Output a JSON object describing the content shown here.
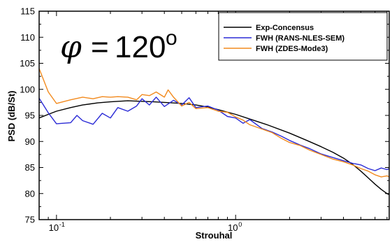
{
  "chart_data": {
    "type": "line",
    "xlabel": "Strouhal",
    "ylabel": "PSD (dB/St)",
    "xscale": "log",
    "xlim": [
      0.08,
      7.2
    ],
    "ylim": [
      75,
      115
    ],
    "grid": false,
    "legend_position": "top-right",
    "y_ticks": [
      75,
      80,
      85,
      90,
      95,
      100,
      105,
      110,
      115
    ],
    "y_tick_labels": [
      "75",
      "80",
      "85",
      "90",
      "95",
      "100",
      "105",
      "110",
      "115"
    ],
    "x_major_ticks": [
      0.1,
      1.0
    ],
    "x_tick_labels": [
      {
        "base": "10",
        "exp": "-1"
      },
      {
        "base": "10",
        "exp": "0"
      }
    ],
    "annotation": {
      "symbol": "φ",
      "equals": "=",
      "value": "120",
      "superscript": "o"
    },
    "series": [
      {
        "name": "Exp-Concensus",
        "color": "#000000",
        "x": [
          0.08,
          0.09,
          0.1,
          0.12,
          0.14,
          0.17,
          0.2,
          0.25,
          0.3,
          0.35,
          0.4,
          0.5,
          0.6,
          0.7,
          0.8,
          1.0,
          1.2,
          1.5,
          2.0,
          2.5,
          3.0,
          3.5,
          4.0,
          4.5,
          5.0,
          5.5,
          6.0,
          6.5,
          7.0,
          7.2
        ],
        "y": [
          94.5,
          95.2,
          95.8,
          96.5,
          97.0,
          97.4,
          97.6,
          97.8,
          97.7,
          97.6,
          97.5,
          97.3,
          97.0,
          96.6,
          96.1,
          95.2,
          94.3,
          93.2,
          91.6,
          90.2,
          89.0,
          87.9,
          86.8,
          85.6,
          84.3,
          83.0,
          81.8,
          80.8,
          80.0,
          79.8
        ]
      },
      {
        "name": "FWH (RANS-NLES-SEM)",
        "color": "#2b2bd6",
        "x": [
          0.08,
          0.09,
          0.1,
          0.12,
          0.13,
          0.14,
          0.16,
          0.18,
          0.2,
          0.22,
          0.25,
          0.28,
          0.3,
          0.33,
          0.36,
          0.4,
          0.45,
          0.5,
          0.55,
          0.6,
          0.7,
          0.8,
          0.9,
          1.0,
          1.1,
          1.2,
          1.4,
          1.6,
          1.8,
          2.0,
          2.3,
          2.6,
          3.0,
          3.5,
          4.0,
          4.5,
          5.0,
          5.5,
          6.0,
          6.5,
          7.0,
          7.2
        ],
        "y": [
          98.3,
          95.5,
          93.4,
          93.6,
          95.0,
          94.0,
          93.3,
          95.4,
          94.5,
          96.5,
          95.8,
          96.8,
          98.2,
          97.0,
          98.5,
          96.7,
          97.9,
          97.0,
          98.4,
          96.5,
          96.8,
          96.0,
          94.8,
          94.5,
          93.5,
          94.2,
          92.5,
          91.8,
          91.0,
          90.2,
          89.3,
          88.6,
          87.6,
          86.9,
          86.3,
          85.8,
          85.5,
          84.8,
          84.4,
          84.9,
          84.6,
          84.8
        ]
      },
      {
        "name": "FWH (ZDES-Mode3)",
        "color": "#f28a1e",
        "x": [
          0.08,
          0.09,
          0.1,
          0.12,
          0.14,
          0.16,
          0.18,
          0.2,
          0.22,
          0.25,
          0.28,
          0.3,
          0.33,
          0.36,
          0.4,
          0.42,
          0.45,
          0.5,
          0.55,
          0.6,
          0.7,
          0.8,
          0.9,
          1.0,
          1.1,
          1.2,
          1.4,
          1.6,
          1.8,
          2.0,
          2.3,
          2.6,
          3.0,
          3.5,
          4.0,
          4.5,
          5.0,
          5.5,
          6.0,
          6.5,
          7.0,
          7.2
        ],
        "y": [
          104.0,
          99.5,
          97.3,
          98.0,
          98.5,
          98.2,
          98.6,
          98.5,
          98.6,
          98.5,
          98.0,
          99.0,
          98.8,
          99.5,
          98.5,
          99.9,
          98.5,
          96.8,
          97.5,
          96.3,
          96.5,
          95.8,
          95.6,
          94.7,
          94.1,
          93.2,
          92.4,
          91.7,
          90.6,
          89.8,
          89.2,
          88.3,
          87.5,
          86.6,
          86.1,
          85.5,
          84.8,
          84.3,
          83.6,
          83.2,
          83.4,
          83.2
        ]
      }
    ]
  }
}
